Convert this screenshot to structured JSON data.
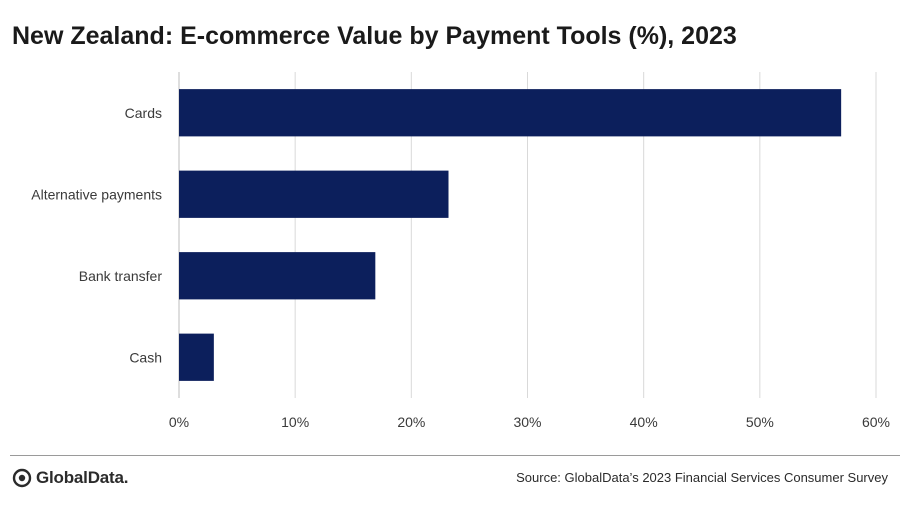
{
  "chart_data": {
    "type": "bar",
    "orientation": "horizontal",
    "title": "New Zealand: E-commerce Value by Payment Tools (%), 2023",
    "categories": [
      "Cards",
      "Alternative payments",
      "Bank transfer",
      "Cash"
    ],
    "values": [
      57,
      23.2,
      16.9,
      3
    ],
    "xlim": [
      0,
      60
    ],
    "xticks": [
      "0%",
      "10%",
      "20%",
      "30%",
      "40%",
      "50%",
      "60%"
    ],
    "grid": true,
    "bar_color": "#0c1f5c"
  },
  "footer": {
    "logo_text": "GlobalData.",
    "source": "Source: GlobalData’s 2023 Financial Services Consumer Survey"
  }
}
